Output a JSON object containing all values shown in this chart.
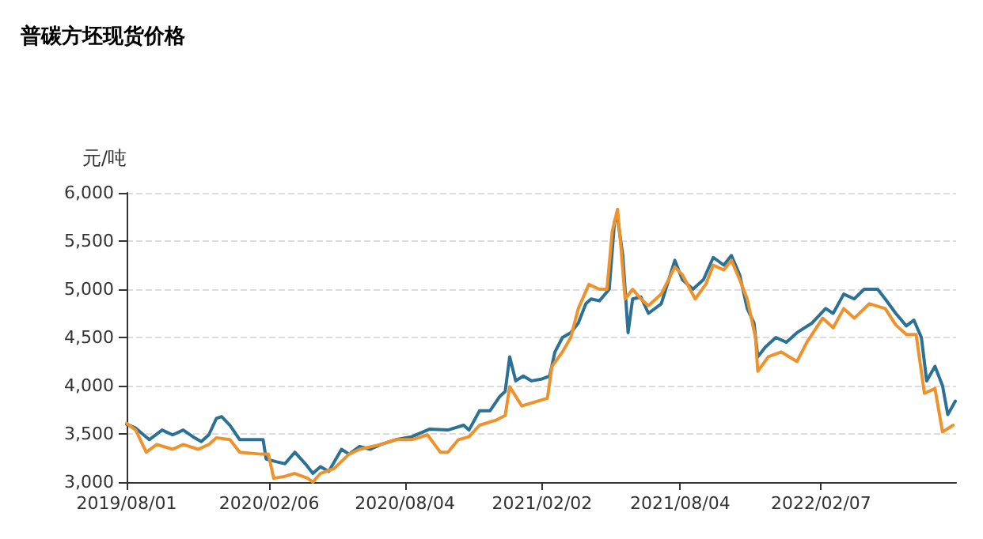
{
  "chart_data": {
    "type": "line",
    "title": "普碳方坯现货价格",
    "ylabel": "元/吨",
    "xlim": [
      "2019-08-01",
      "2022-08-05"
    ],
    "xticks": [
      {
        "value": "2019-08-01",
        "label": "2019/08/01"
      },
      {
        "value": "2020-02-06",
        "label": "2020/02/06"
      },
      {
        "value": "2020-08-04",
        "label": "2020/08/04"
      },
      {
        "value": "2021-02-02",
        "label": "2021/02/02"
      },
      {
        "value": "2021-08-04",
        "label": "2021/08/04"
      },
      {
        "value": "2022-02-07",
        "label": "2022/02/07"
      }
    ],
    "ylim": [
      3000,
      6000
    ],
    "yticks": [
      {
        "value": 3000,
        "label": "3,000"
      },
      {
        "value": 3500,
        "label": "3,500"
      },
      {
        "value": 4000,
        "label": "4,000"
      },
      {
        "value": 4500,
        "label": "4,500"
      },
      {
        "value": 5000,
        "label": "5,000"
      },
      {
        "value": 5500,
        "label": "5,500"
      },
      {
        "value": 6000,
        "label": "6,000"
      }
    ],
    "grid": "y",
    "marker": "none",
    "line_style": "solid",
    "series": [
      {
        "color": "#2b7196",
        "x": [
          "2019-08-01",
          "2019-08-13",
          "2019-08-31",
          "2019-09-17",
          "2019-10-01",
          "2019-10-15",
          "2019-10-28",
          "2019-11-08",
          "2019-11-18",
          "2019-11-28",
          "2019-12-05",
          "2019-12-16",
          "2019-12-29",
          "2020-01-12",
          "2020-01-29",
          "2020-02-02",
          "2020-02-16",
          "2020-02-27",
          "2020-03-11",
          "2020-03-25",
          "2020-04-04",
          "2020-04-14",
          "2020-04-25",
          "2020-05-12",
          "2020-05-22",
          "2020-06-05",
          "2020-06-19",
          "2020-07-03",
          "2020-07-23",
          "2020-08-13",
          "2020-09-06",
          "2020-09-30",
          "2020-10-21",
          "2020-10-28",
          "2020-11-11",
          "2020-11-25",
          "2020-12-08",
          "2020-12-15",
          "2020-12-21",
          "2020-12-29",
          "2021-01-08",
          "2021-01-19",
          "2021-02-02",
          "2021-02-12",
          "2021-02-19",
          "2021-03-01",
          "2021-03-12",
          "2021-03-22",
          "2021-04-01",
          "2021-04-08",
          "2021-04-19",
          "2021-05-02",
          "2021-05-09",
          "2021-05-13",
          "2021-05-20",
          "2021-05-27",
          "2021-06-02",
          "2021-06-13",
          "2021-06-23",
          "2021-07-10",
          "2021-07-28",
          "2021-08-07",
          "2021-08-21",
          "2021-09-04",
          "2021-09-17",
          "2021-10-01",
          "2021-10-11",
          "2021-10-22",
          "2021-11-01",
          "2021-11-10",
          "2021-11-15",
          "2021-11-25",
          "2021-12-09",
          "2021-12-23",
          "2022-01-06",
          "2022-01-26",
          "2022-02-13",
          "2022-02-23",
          "2022-03-09",
          "2022-03-23",
          "2022-04-05",
          "2022-04-23",
          "2022-05-03",
          "2022-05-17",
          "2022-05-31",
          "2022-06-10",
          "2022-06-20",
          "2022-06-27",
          "2022-07-08",
          "2022-07-18",
          "2022-07-25",
          "2022-08-04"
        ],
        "values": [
          3600,
          3560,
          3440,
          3540,
          3490,
          3540,
          3470,
          3420,
          3490,
          3660,
          3680,
          3590,
          3440,
          3440,
          3440,
          3240,
          3210,
          3190,
          3310,
          3190,
          3090,
          3160,
          3110,
          3340,
          3290,
          3370,
          3340,
          3390,
          3440,
          3470,
          3550,
          3540,
          3590,
          3540,
          3740,
          3740,
          3890,
          3940,
          4300,
          4050,
          4100,
          4050,
          4070,
          4100,
          4350,
          4500,
          4550,
          4650,
          4850,
          4900,
          4880,
          5000,
          5700,
          5740,
          5350,
          4550,
          4900,
          4920,
          4750,
          4850,
          5300,
          5100,
          5000,
          5100,
          5330,
          5250,
          5350,
          5150,
          4800,
          4650,
          4300,
          4400,
          4500,
          4450,
          4550,
          4650,
          4800,
          4750,
          4950,
          4900,
          5000,
          5000,
          4900,
          4750,
          4620,
          4680,
          4500,
          4050,
          4200,
          4000,
          3700,
          3840
        ]
      },
      {
        "color": "#f0922c",
        "x": [
          "2019-08-01",
          "2019-08-13",
          "2019-08-27",
          "2019-09-10",
          "2019-10-01",
          "2019-10-15",
          "2019-11-04",
          "2019-11-18",
          "2019-11-28",
          "2019-12-16",
          "2019-12-29",
          "2020-01-26",
          "2020-02-05",
          "2020-02-12",
          "2020-02-27",
          "2020-03-11",
          "2020-03-28",
          "2020-04-04",
          "2020-04-14",
          "2020-05-02",
          "2020-05-22",
          "2020-06-05",
          "2020-07-03",
          "2020-07-23",
          "2020-08-13",
          "2020-09-03",
          "2020-09-20",
          "2020-09-30",
          "2020-10-14",
          "2020-10-28",
          "2020-11-11",
          "2020-12-02",
          "2020-12-15",
          "2020-12-21",
          "2021-01-06",
          "2021-02-09",
          "2021-02-15",
          "2021-03-01",
          "2021-03-12",
          "2021-03-22",
          "2021-04-05",
          "2021-04-19",
          "2021-04-29",
          "2021-05-06",
          "2021-05-13",
          "2021-05-18",
          "2021-05-23",
          "2021-06-02",
          "2021-06-13",
          "2021-06-23",
          "2021-07-10",
          "2021-07-28",
          "2021-08-07",
          "2021-08-24",
          "2021-09-07",
          "2021-09-17",
          "2021-10-01",
          "2021-10-11",
          "2021-10-22",
          "2021-11-01",
          "2021-11-12",
          "2021-11-15",
          "2021-11-29",
          "2021-12-16",
          "2022-01-06",
          "2022-01-19",
          "2022-02-09",
          "2022-02-23",
          "2022-03-09",
          "2022-03-23",
          "2022-04-12",
          "2022-05-03",
          "2022-05-17",
          "2022-05-31",
          "2022-06-13",
          "2022-06-24",
          "2022-07-08",
          "2022-07-18",
          "2022-08-01"
        ],
        "values": [
          3610,
          3540,
          3310,
          3390,
          3340,
          3390,
          3340,
          3390,
          3460,
          3440,
          3310,
          3290,
          3290,
          3040,
          3060,
          3090,
          3040,
          3000,
          3090,
          3140,
          3290,
          3340,
          3390,
          3440,
          3440,
          3490,
          3310,
          3310,
          3440,
          3470,
          3590,
          3640,
          3690,
          3990,
          3790,
          3870,
          4200,
          4350,
          4500,
          4800,
          5050,
          5000,
          5000,
          5600,
          5830,
          5400,
          4900,
          5000,
          4900,
          4830,
          4950,
          5230,
          5150,
          4900,
          5050,
          5250,
          5200,
          5300,
          5100,
          4900,
          4500,
          4150,
          4300,
          4350,
          4250,
          4450,
          4700,
          4600,
          4800,
          4700,
          4850,
          4800,
          4630,
          4530,
          4530,
          3920,
          3970,
          3520,
          3590
        ]
      }
    ]
  }
}
